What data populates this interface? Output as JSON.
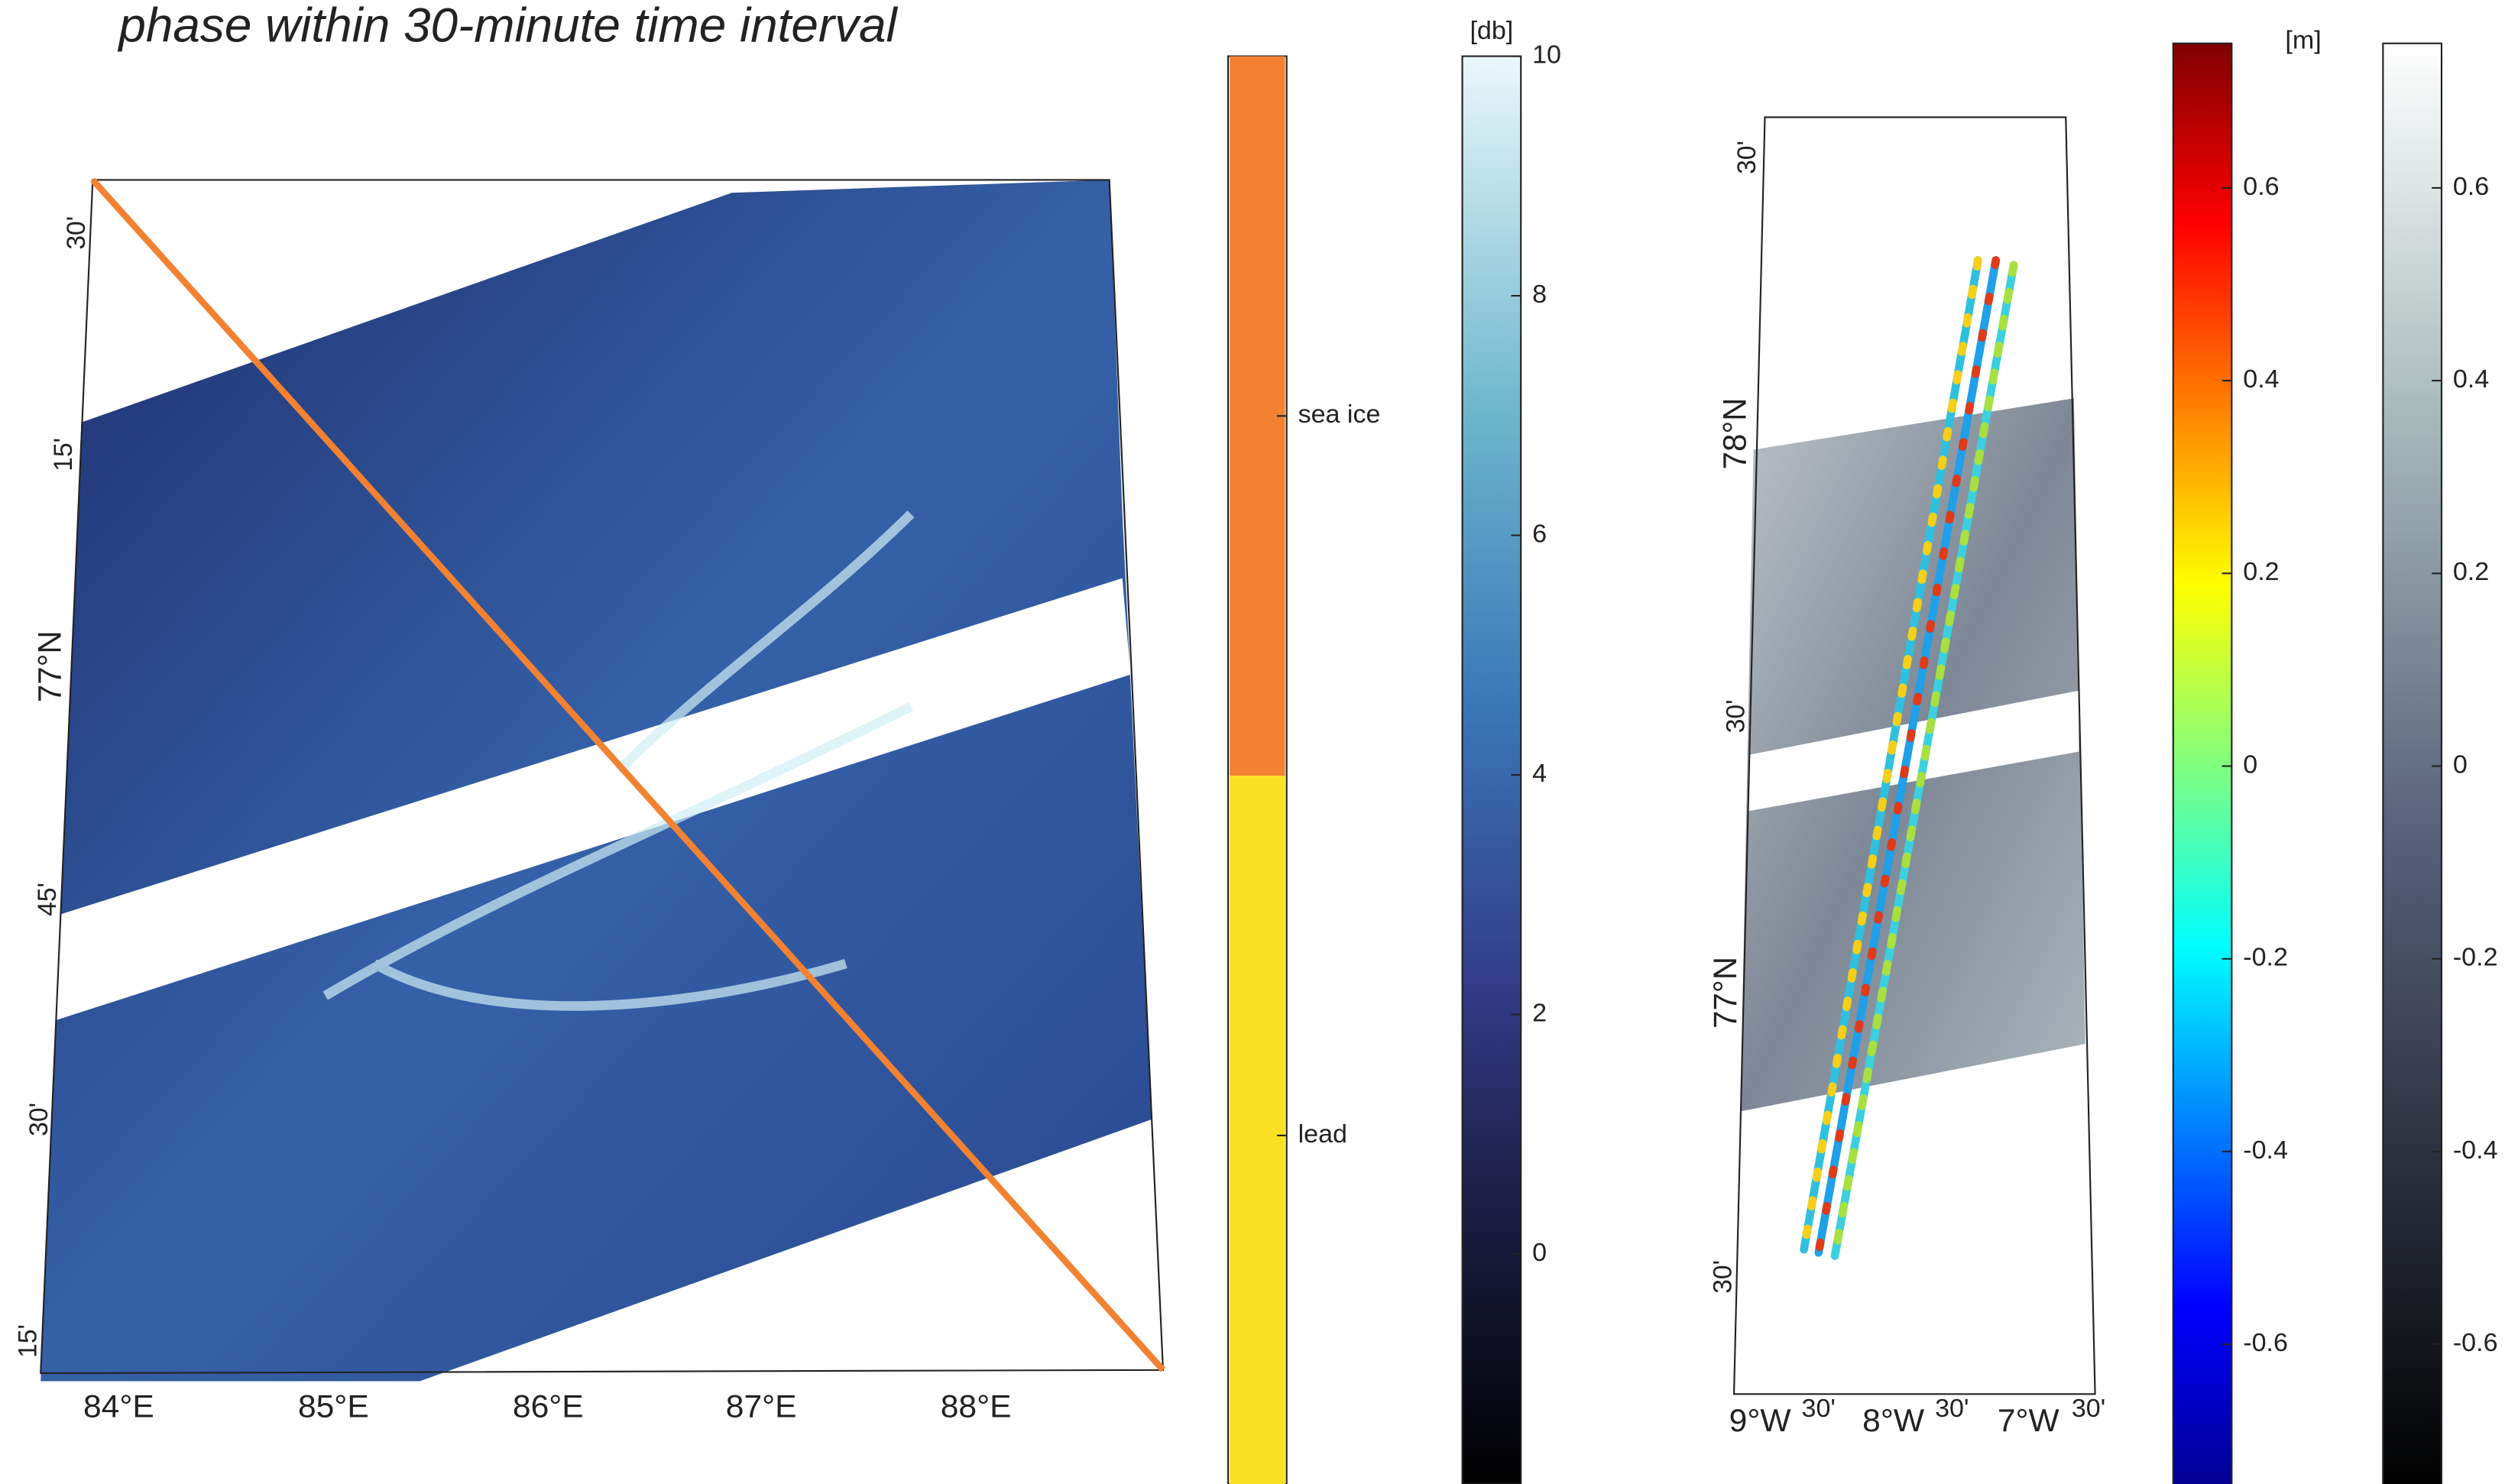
{
  "title": "phase within 30-minute time interval",
  "left_map": {
    "lat_labels": [
      "30'",
      "15'",
      "77°N",
      "45'",
      "30'",
      "15'"
    ],
    "lon_labels": [
      "84°E",
      "85°E",
      "86°E",
      "87°E",
      "88°E"
    ]
  },
  "class_colorbar": {
    "labels": [
      "sea ice",
      "lead"
    ],
    "colors": [
      "#f28232",
      "#fde021"
    ]
  },
  "db_colorbar": {
    "unit": "[db]",
    "ylim": [
      -2,
      10
    ],
    "ticks": [
      0,
      2,
      4,
      6,
      8,
      10
    ]
  },
  "right_map": {
    "lat_labels": [
      "30'",
      "78°N",
      "30'",
      "77°N",
      "30'"
    ],
    "lon_labels": [
      "9°W",
      "30'",
      "8°W",
      "30'",
      "7°W",
      "30'"
    ]
  },
  "elevation_colorbar": {
    "unit": "[m]",
    "ylim": [
      -0.75,
      0.75
    ],
    "ticks": [
      -0.6,
      -0.4,
      -0.2,
      0,
      0.2,
      0.4,
      0.6
    ]
  },
  "gray_colorbar": {
    "ylim": [
      -0.75,
      0.75
    ],
    "ticks": [
      -0.6,
      -0.4,
      -0.2,
      0,
      0.2,
      0.4,
      0.6
    ]
  }
}
